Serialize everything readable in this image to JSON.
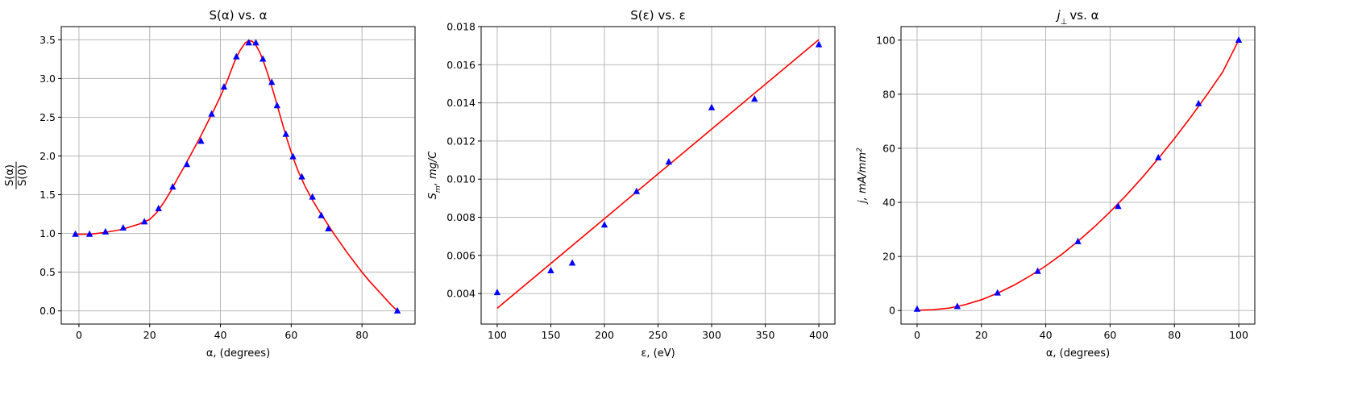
{
  "chart_data": [
    {
      "type": "scatter",
      "title": "S(α) vs. α",
      "xlabel": "α, (degrees)",
      "ylabel_num": "S(α)",
      "ylabel_den": "S(0)",
      "xlim": [
        -5,
        95
      ],
      "ylim": [
        -0.17,
        3.67
      ],
      "xticks": [
        0,
        20,
        40,
        60,
        80
      ],
      "yticks": [
        0.0,
        0.5,
        1.0,
        1.5,
        2.0,
        2.5,
        3.0,
        3.5
      ],
      "ytick_decimals": 1,
      "grid": true,
      "series": [
        {
          "kind": "markers",
          "marker": "triangle",
          "color": "#0000ff",
          "x": [
            -1,
            3,
            7.5,
            12.5,
            18.5,
            22.5,
            26.5,
            30.5,
            34.5,
            37.5,
            41,
            44.5,
            48,
            50,
            52,
            54.5,
            56,
            58.5,
            60.5,
            63,
            66,
            68.5,
            70.5,
            90
          ],
          "y": [
            0.99,
            0.99,
            1.02,
            1.07,
            1.15,
            1.32,
            1.6,
            1.89,
            2.19,
            2.54,
            2.89,
            3.28,
            3.46,
            3.46,
            3.25,
            2.95,
            2.65,
            2.28,
            1.99,
            1.73,
            1.47,
            1.23,
            1.06,
            0.0
          ]
        },
        {
          "kind": "line",
          "color": "#ff0000",
          "x": [
            -1,
            3,
            7,
            12,
            17,
            20,
            22,
            24,
            26,
            28,
            30,
            32,
            34,
            36,
            38,
            40,
            42,
            44,
            45.5,
            47,
            48,
            49,
            50,
            51,
            52,
            53,
            54,
            55,
            56,
            57,
            58,
            59,
            60,
            61,
            62,
            63,
            64,
            66,
            68,
            70,
            72,
            74,
            76,
            78,
            80,
            82,
            84,
            86,
            88,
            90
          ],
          "y": [
            0.99,
            0.99,
            1.01,
            1.05,
            1.12,
            1.18,
            1.27,
            1.4,
            1.55,
            1.72,
            1.88,
            2.05,
            2.22,
            2.4,
            2.58,
            2.77,
            2.98,
            3.22,
            3.36,
            3.46,
            3.49,
            3.48,
            3.43,
            3.35,
            3.24,
            3.11,
            2.97,
            2.82,
            2.66,
            2.5,
            2.34,
            2.19,
            2.05,
            1.92,
            1.8,
            1.7,
            1.6,
            1.43,
            1.28,
            1.14,
            1.0,
            0.87,
            0.74,
            0.62,
            0.5,
            0.39,
            0.29,
            0.19,
            0.09,
            0.0
          ]
        }
      ]
    },
    {
      "type": "scatter",
      "title": "S(ε) vs. ε",
      "xlabel": "ε, (eV)",
      "ylabel": "S_m, mg/C",
      "xlim": [
        85,
        415
      ],
      "ylim": [
        0.0024,
        0.018
      ],
      "xticks": [
        100,
        150,
        200,
        250,
        300,
        350,
        400
      ],
      "yticks": [
        0.004,
        0.006,
        0.008,
        0.01,
        0.012,
        0.014,
        0.016,
        0.018
      ],
      "ytick_decimals": 3,
      "grid": true,
      "series": [
        {
          "kind": "markers",
          "marker": "triangle",
          "color": "#0000ff",
          "x": [
            100,
            150,
            170,
            200,
            230,
            260,
            300,
            340,
            400
          ],
          "y": [
            0.00405,
            0.0052,
            0.0056,
            0.0076,
            0.00935,
            0.0109,
            0.01375,
            0.0142,
            0.01705
          ]
        },
        {
          "kind": "line",
          "color": "#ff0000",
          "x": [
            100,
            400
          ],
          "y": [
            0.00323,
            0.01732
          ]
        }
      ]
    },
    {
      "type": "scatter",
      "title": "j⊥ vs. α",
      "xlabel": "α, (degrees)",
      "ylabel": "j, mA/mm²",
      "xlim": [
        -5,
        105
      ],
      "ylim": [
        -5,
        105
      ],
      "xticks": [
        0,
        20,
        40,
        60,
        80,
        100
      ],
      "yticks": [
        0,
        20,
        40,
        60,
        80,
        100
      ],
      "ytick_decimals": 0,
      "grid": true,
      "series": [
        {
          "kind": "markers",
          "marker": "triangle",
          "color": "#0000ff",
          "x": [
            0,
            12.5,
            25,
            37.5,
            50,
            62.5,
            75,
            87.5,
            100
          ],
          "y": [
            0.5,
            1.5,
            6.5,
            14.5,
            25.5,
            38.5,
            56.5,
            76.5,
            100
          ]
        },
        {
          "kind": "line",
          "color": "#ff0000",
          "x": [
            0,
            5,
            10,
            15,
            20,
            25,
            30,
            35,
            40,
            45,
            50,
            55,
            60,
            65,
            70,
            75,
            80,
            85,
            90,
            95,
            100
          ],
          "y": [
            0.1,
            0.3,
            0.9,
            2.2,
            4.0,
            6.4,
            9.3,
            12.7,
            16.5,
            20.8,
            25.6,
            30.8,
            36.5,
            42.6,
            49.2,
            56.2,
            63.6,
            71.4,
            79.6,
            88.2,
            100.0
          ]
        }
      ]
    }
  ]
}
